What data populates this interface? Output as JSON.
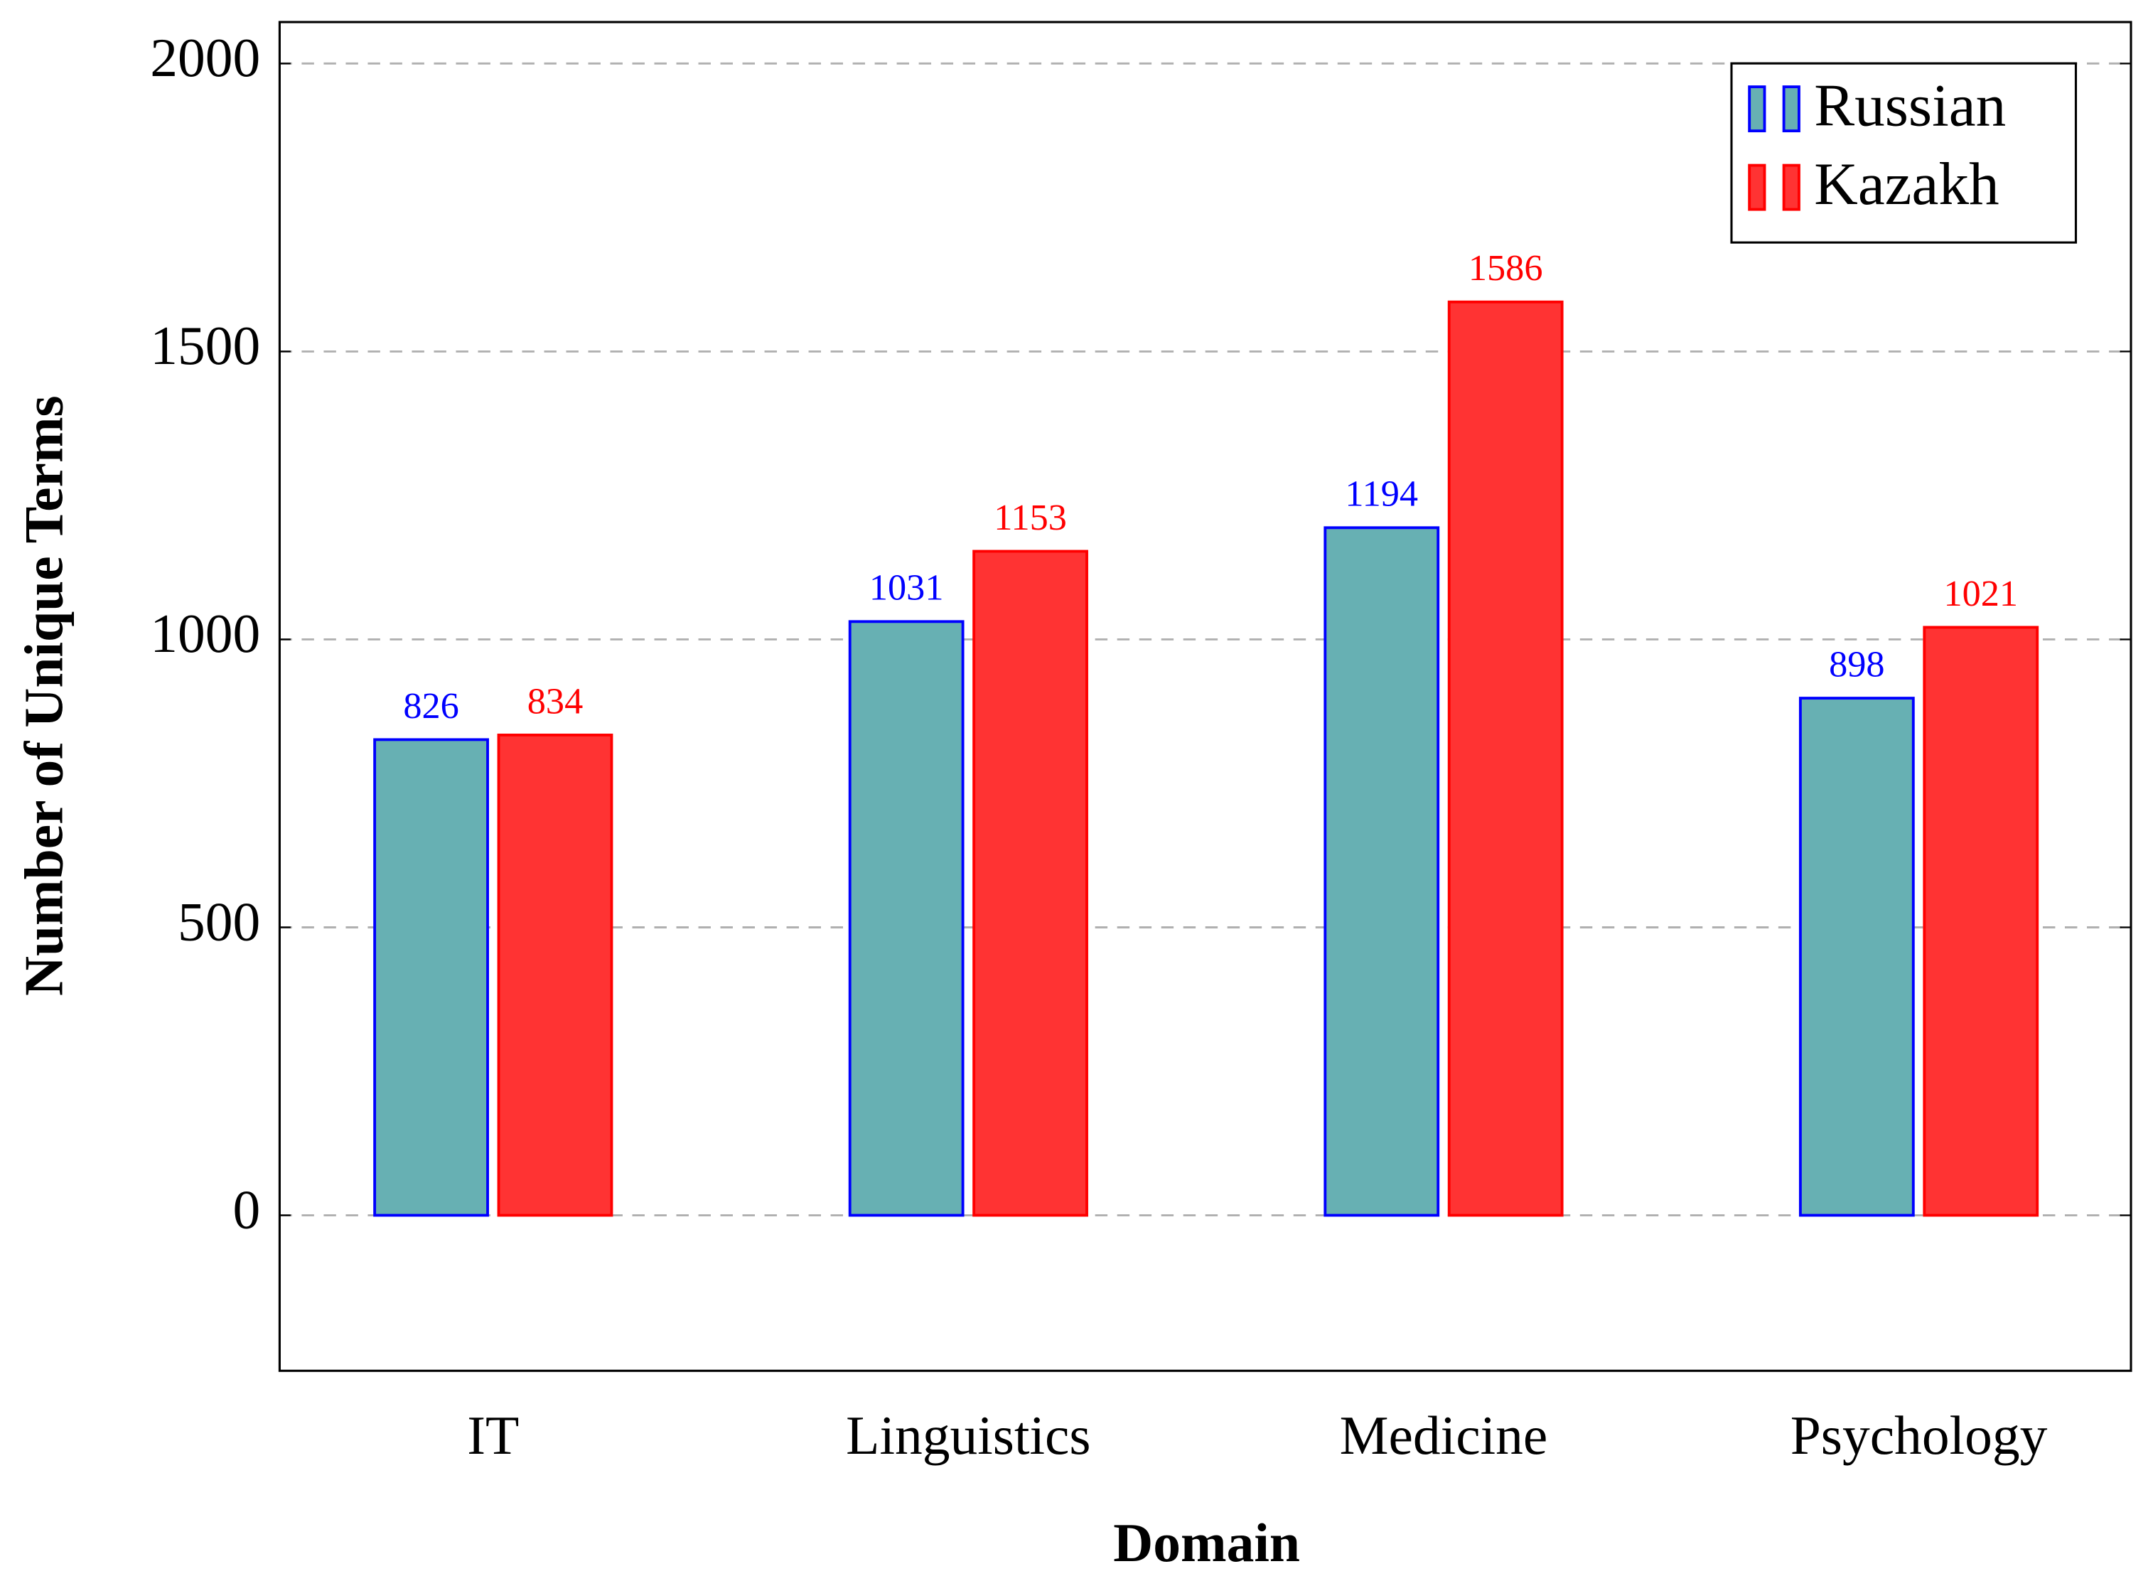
{
  "chart_data": {
    "type": "bar",
    "x_label": "Domain",
    "y_label": "Number of Unique Terms",
    "categories": [
      "IT",
      "Linguistics",
      "Medicine",
      "Psychology"
    ],
    "series": [
      {
        "name": "Russian",
        "color": "#67b0b3",
        "edge_color": "#0000ff",
        "values": [
          826,
          1031,
          1194,
          898
        ]
      },
      {
        "name": "Kazakh",
        "color": "#ff3333",
        "edge_color": "#ff0000",
        "values": [
          834,
          1153,
          1586,
          1021
        ]
      }
    ],
    "ylim": [
      -270,
      2072
    ],
    "yticks": [
      0,
      500,
      1000,
      1500,
      2000
    ],
    "grid": true,
    "legend": "upper right"
  }
}
